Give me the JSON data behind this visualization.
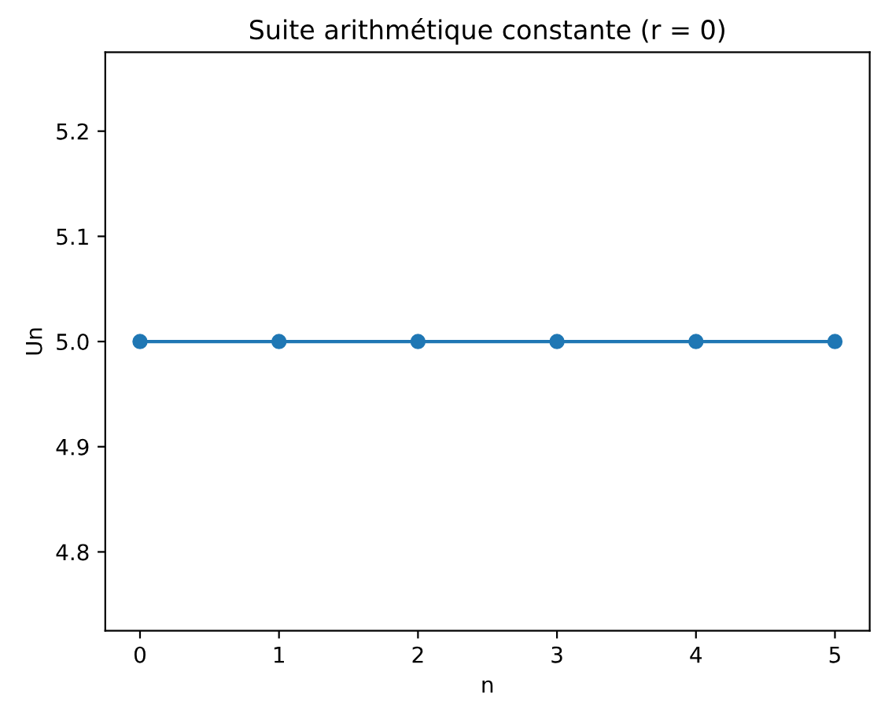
{
  "chart_data": {
    "type": "line",
    "title": "Suite arithmétique constante (r = 0)",
    "xlabel": "n",
    "ylabel": "Un",
    "x": [
      0,
      1,
      2,
      3,
      4,
      5
    ],
    "series": [
      {
        "color": "#1f77b4",
        "values": [
          5,
          5,
          5,
          5,
          5,
          5
        ]
      }
    ],
    "xlim": [
      -0.25,
      5.25
    ],
    "xticks": [
      0,
      1,
      2,
      3,
      4,
      5
    ],
    "ylim": [
      4.725,
      5.275
    ],
    "yticks": [
      4.8,
      4.9,
      {
        "value": 5,
        "label": "5.0"
      },
      5.1,
      5.2
    ],
    "marker": "circle",
    "line_style": "solid",
    "grid": false,
    "legend": false
  }
}
